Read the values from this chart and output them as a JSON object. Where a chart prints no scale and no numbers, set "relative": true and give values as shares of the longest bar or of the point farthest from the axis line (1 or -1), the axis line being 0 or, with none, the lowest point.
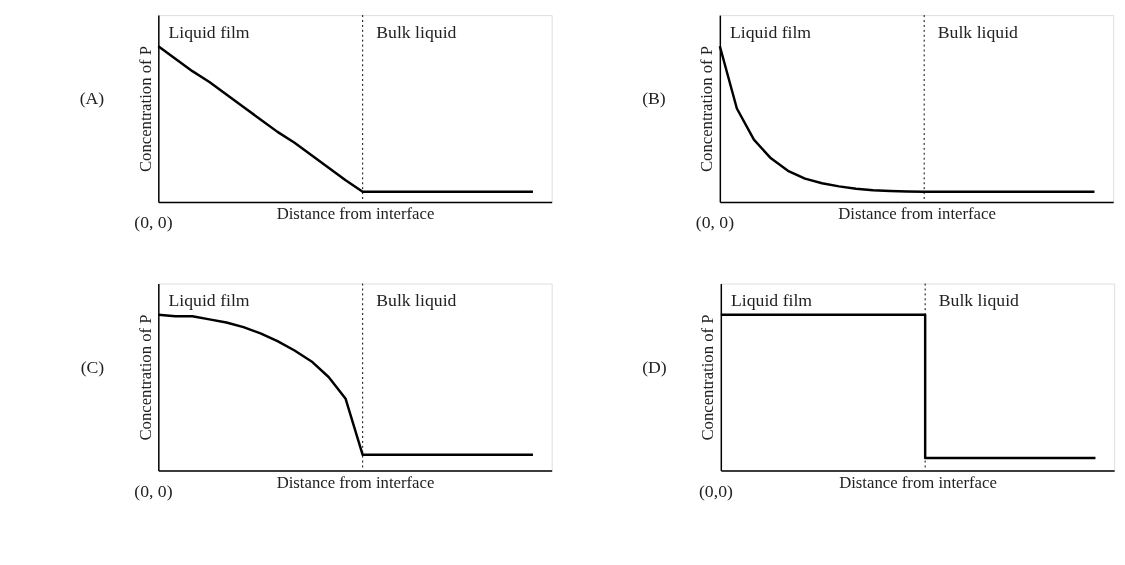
{
  "chart_data": [
    {
      "type": "line",
      "relative": true,
      "xlabel": "Distance from interface",
      "ylabel": "Concentration of P",
      "annotations": [
        "(A)",
        "(0, 0)",
        "Liquid film",
        "Bulk liquid"
      ],
      "categories": [
        null,
        null,
        null,
        null,
        null,
        null,
        null,
        null,
        null,
        null,
        null,
        null,
        null,
        null,
        null,
        null,
        null,
        null,
        null,
        null,
        null,
        null,
        null
      ],
      "tick_labels": false,
      "grid": false,
      "marker": "none",
      "line_style": "solid",
      "ref_lines": [
        {
          "axis": "x",
          "line_style": "dotted",
          "color": "#000000"
        }
      ],
      "series": [
        {
          "color": "#000000",
          "values": [
            1,
            0.92,
            0.84,
            0.77,
            0.69,
            0.61,
            0.53,
            0.45,
            0.38,
            0.3,
            0.22,
            0.14,
            0.065,
            0.065,
            0.065,
            0.065,
            0.065,
            0.065,
            0.065,
            0.065,
            0.065,
            0.065,
            0.065
          ]
        }
      ]
    },
    {
      "type": "line",
      "relative": true,
      "xlabel": "Distance from interface",
      "ylabel": "Concentration of P",
      "annotations": [
        "(B)",
        "(0, 0)",
        "Liquid film",
        "Bulk liquid"
      ],
      "categories": [
        null,
        null,
        null,
        null,
        null,
        null,
        null,
        null,
        null,
        null,
        null,
        null,
        null,
        null,
        null,
        null,
        null,
        null,
        null,
        null,
        null,
        null,
        null
      ],
      "tick_labels": false,
      "grid": false,
      "marker": "none",
      "line_style": "solid",
      "ref_lines": [
        {
          "axis": "x",
          "line_style": "dotted",
          "color": "#000000"
        }
      ],
      "series": [
        {
          "color": "#000000",
          "values": [
            1,
            0.6,
            0.4,
            0.28,
            0.2,
            0.15,
            0.12,
            0.1,
            0.085,
            0.075,
            0.07,
            0.067,
            0.065,
            0.065,
            0.065,
            0.065,
            0.065,
            0.065,
            0.065,
            0.065,
            0.065,
            0.065,
            0.065
          ]
        }
      ]
    },
    {
      "type": "line",
      "relative": true,
      "xlabel": "Distance from interface",
      "ylabel": "Concentration of P",
      "annotations": [
        "(C)",
        "(0, 0)",
        "Liquid film",
        "Bulk liquid"
      ],
      "categories": [
        null,
        null,
        null,
        null,
        null,
        null,
        null,
        null,
        null,
        null,
        null,
        null,
        null,
        null,
        null,
        null,
        null,
        null,
        null,
        null,
        null,
        null,
        null
      ],
      "tick_labels": false,
      "grid": false,
      "marker": "none",
      "line_style": "solid",
      "ref_lines": [
        {
          "axis": "x",
          "line_style": "dotted",
          "color": "#000000"
        }
      ],
      "series": [
        {
          "color": "#000000",
          "values": [
            1,
            0.99,
            0.99,
            0.97,
            0.95,
            0.92,
            0.88,
            0.83,
            0.77,
            0.7,
            0.6,
            0.46,
            0.1,
            0.1,
            0.1,
            0.1,
            0.1,
            0.1,
            0.1,
            0.1,
            0.1,
            0.1,
            0.1
          ]
        }
      ]
    },
    {
      "type": "line",
      "relative": true,
      "xlabel": "Distance from interface",
      "ylabel": "Concentration of P",
      "annotations": [
        "(D)",
        "(0,0)",
        "Liquid film",
        "Bulk liquid"
      ],
      "categories": [
        null,
        null,
        null,
        null,
        null,
        null,
        null,
        null,
        null,
        null,
        null,
        null,
        null,
        null,
        null,
        null,
        null,
        null,
        null,
        null,
        null,
        null,
        null
      ],
      "tick_labels": false,
      "grid": false,
      "marker": "none",
      "line_style": "solid",
      "ref_lines": [
        {
          "axis": "x",
          "line_style": "dotted",
          "color": "#000000"
        }
      ],
      "series": [
        {
          "type": "step",
          "color": "#000000",
          "values": [
            1,
            1,
            1,
            1,
            1,
            1,
            1,
            1,
            1,
            1,
            1,
            1,
            0.08,
            0.08,
            0.08,
            0.08,
            0.08,
            0.08,
            0.08,
            0.08,
            0.08,
            0.08,
            0.08
          ]
        }
      ]
    }
  ]
}
